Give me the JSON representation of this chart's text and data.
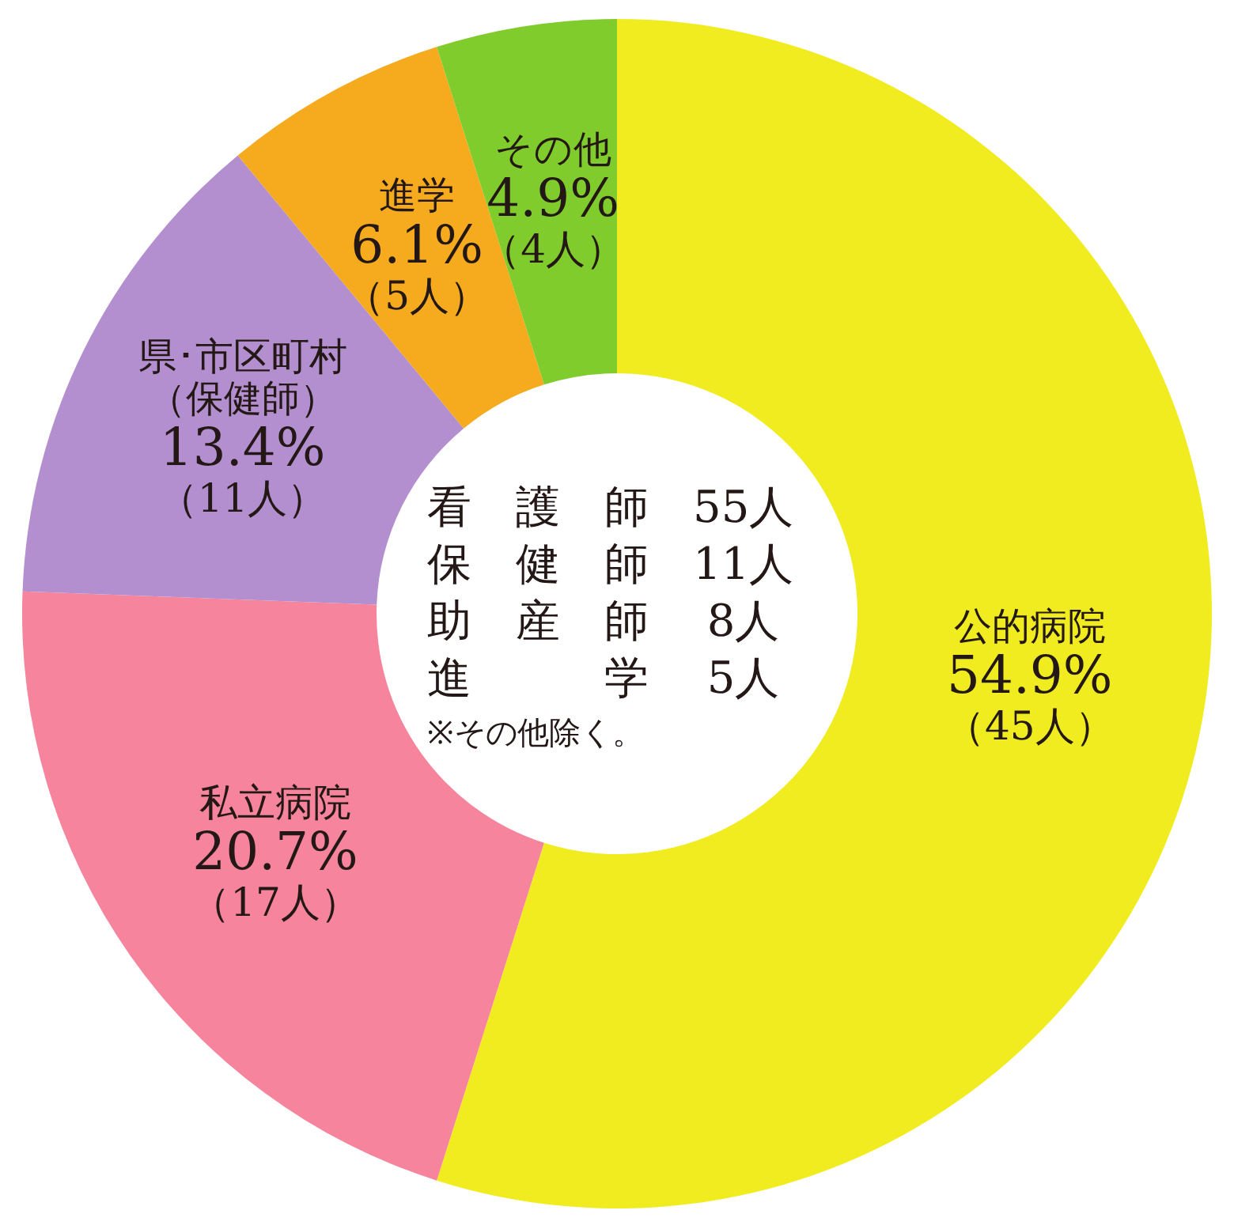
{
  "chart_data": {
    "type": "donut",
    "categories": [
      "公的病院",
      "私立病院",
      "県･市区町村（保健師）",
      "進学",
      "その他"
    ],
    "values": [
      54.9,
      20.7,
      13.4,
      6.1,
      4.9
    ],
    "colors": [
      "#f0ec1f",
      "#f5849c",
      "#b48fcf",
      "#f6ab1f",
      "#80cc2c"
    ],
    "value_labels": [
      "54.9%\n（45人）",
      "20.7%\n（17人）",
      "13.4%\n（11人）",
      "6.1%\n（5人）",
      "4.9%\n（4人）"
    ],
    "annotations": [
      "看　護　師　55人",
      "保　健　師　11人",
      "助　産　師　 8人",
      "進　　　学　 5人",
      "※その他除く。"
    ],
    "legend": false
  }
}
